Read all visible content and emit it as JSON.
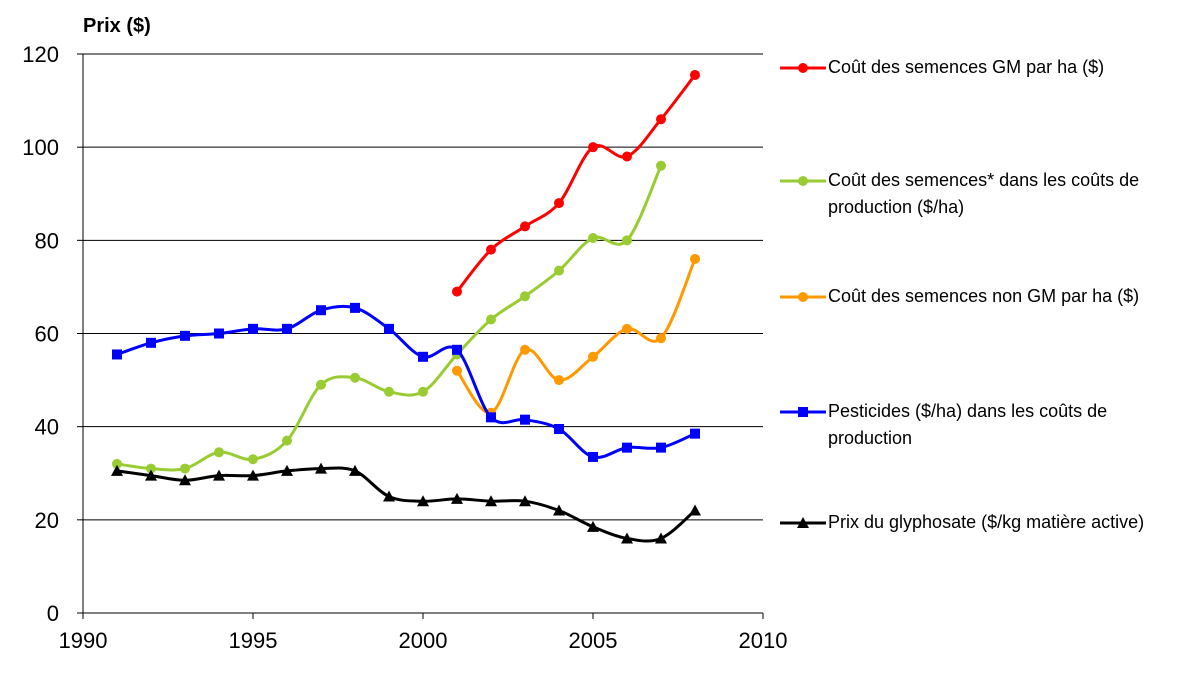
{
  "chart_data": {
    "type": "line",
    "ylabel": "Prix ($)",
    "x": [
      1991,
      1992,
      1993,
      1994,
      1995,
      1996,
      1997,
      1998,
      1999,
      2000,
      2001,
      2002,
      2003,
      2004,
      2005,
      2006,
      2007,
      2008
    ],
    "xlim": [
      1990,
      2010
    ],
    "xticks": [
      1990,
      1995,
      2000,
      2005,
      2010
    ],
    "ylim": [
      0,
      120
    ],
    "yticks": [
      0,
      20,
      40,
      60,
      80,
      100,
      120
    ],
    "grid": true,
    "smooth": true,
    "legend": "right",
    "series": [
      {
        "name": "Coût des semences GM par ha ($)",
        "color": "#ff0000",
        "marker": "circle",
        "values": [
          null,
          null,
          null,
          null,
          null,
          null,
          null,
          null,
          null,
          null,
          69,
          78,
          83,
          88,
          100,
          98,
          106,
          115.5
        ]
      },
      {
        "name": "Coût des semences* dans les coûts de production ($/ha)",
        "color": "#99cc33",
        "marker": "circle",
        "values": [
          32,
          31,
          31,
          34.5,
          33,
          37,
          49,
          50.5,
          47.5,
          47.5,
          55.5,
          63,
          68,
          73.5,
          80.5,
          80,
          96,
          null
        ]
      },
      {
        "name": "Coût des semences non GM par ha ($)",
        "color": "#ff9900",
        "marker": "circle",
        "values": [
          null,
          null,
          null,
          null,
          null,
          null,
          null,
          null,
          null,
          null,
          52,
          43,
          56.5,
          50,
          55,
          61,
          59,
          76
        ]
      },
      {
        "name": "Pesticides ($/ha) dans les coûts de production",
        "color": "#0000ff",
        "marker": "square",
        "values": [
          55.5,
          58,
          59.5,
          60,
          61,
          61,
          65,
          65.5,
          61,
          55,
          56.5,
          42,
          41.5,
          39.5,
          33.5,
          35.5,
          35.5,
          38.5
        ]
      },
      {
        "name": "Prix du glyphosate ($/kg matière active)",
        "color": "#000000",
        "marker": "triangle",
        "values": [
          30.5,
          29.5,
          28.5,
          29.5,
          29.5,
          30.5,
          31,
          30.5,
          25,
          24,
          24.5,
          24,
          24,
          22,
          18.5,
          16,
          16,
          22
        ]
      }
    ]
  }
}
